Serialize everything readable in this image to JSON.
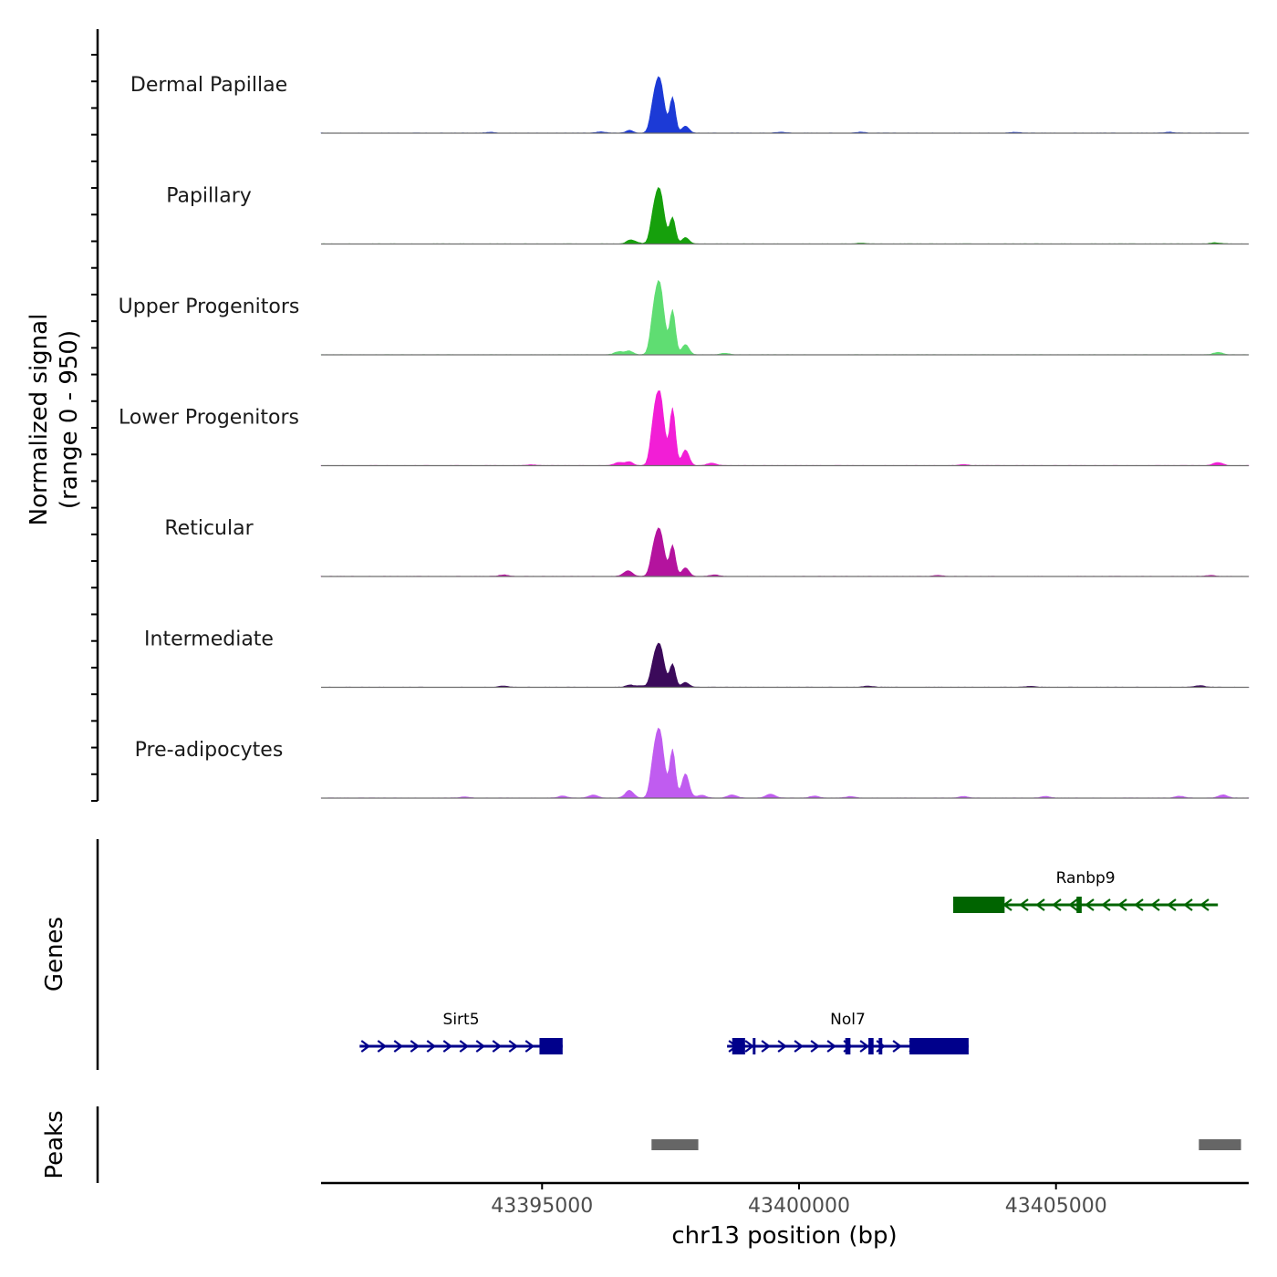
{
  "chart_data": {
    "type": "area",
    "title": "",
    "chromosome": "chr13",
    "xlabel": "chr13 position (bp)",
    "ylabel": "Normalized signal",
    "ylabel_range": "(range 0 - 950)",
    "xlim": [
      43390700,
      43408750
    ],
    "ylim": [
      0,
      950
    ],
    "x_ticks": [
      43395000,
      43400000,
      43405000
    ],
    "x_tick_labels": [
      "43395000",
      "43400000",
      "43405000"
    ],
    "peak_summits": [
      43397280,
      43397540,
      43397790
    ],
    "series": [
      {
        "name": "Dermal Papillae",
        "color": "#1c3ad6",
        "peaks": [
          700,
          450,
          90
        ],
        "background": [
          [
            43394000,
            10
          ],
          [
            43396150,
            15
          ],
          [
            43399650,
            12
          ],
          [
            43401200,
            12
          ],
          [
            43404200,
            10
          ],
          [
            43407200,
            12
          ]
        ]
      },
      {
        "name": "Papillary",
        "color": "#16a00c",
        "peaks": [
          700,
          330,
          80
        ],
        "background": [
          [
            43396800,
            25
          ],
          [
            43401200,
            10
          ],
          [
            43408100,
            15
          ]
        ]
      },
      {
        "name": "Upper Progenitors",
        "color": "#5fdd72",
        "peaks": [
          920,
          560,
          130
        ],
        "background": [
          [
            43396500,
            40
          ],
          [
            43398550,
            18
          ],
          [
            43408150,
            30
          ]
        ]
      },
      {
        "name": "Lower Progenitors",
        "color": "#f21ed6",
        "peaks": [
          950,
          720,
          200
        ],
        "background": [
          [
            43394800,
            10
          ],
          [
            43396500,
            40
          ],
          [
            43398300,
            30
          ],
          [
            43403200,
            12
          ],
          [
            43408150,
            40
          ]
        ]
      },
      {
        "name": "Reticular",
        "color": "#b4139e",
        "peaks": [
          600,
          390,
          110
        ],
        "background": [
          [
            43394250,
            20
          ],
          [
            43396650,
            45
          ],
          [
            43398350,
            20
          ],
          [
            43402700,
            12
          ],
          [
            43408000,
            12
          ]
        ]
      },
      {
        "name": "Intermediate",
        "color": "#3b0a5a",
        "peaks": [
          550,
          290,
          60
        ],
        "background": [
          [
            43394250,
            15
          ],
          [
            43396900,
            20
          ],
          [
            43401350,
            15
          ],
          [
            43404500,
            12
          ],
          [
            43407800,
            20
          ]
        ]
      },
      {
        "name": "Pre-adipocytes",
        "color": "#c05cf0",
        "peaks": [
          870,
          610,
          310
        ],
        "background": [
          [
            43393500,
            15
          ],
          [
            43395400,
            25
          ],
          [
            43396000,
            40
          ],
          [
            43396700,
            55
          ],
          [
            43398100,
            35
          ],
          [
            43398700,
            40
          ],
          [
            43399450,
            50
          ],
          [
            43400300,
            25
          ],
          [
            43401000,
            20
          ],
          [
            43403200,
            20
          ],
          [
            43404800,
            20
          ],
          [
            43407400,
            25
          ],
          [
            43408250,
            40
          ]
        ]
      }
    ],
    "genes_track_label": "Genes",
    "genes": [
      {
        "name": "Ranbp9",
        "strand": "-",
        "color": "#006400",
        "start": 43403000,
        "end": 43408150,
        "exons": [
          [
            43403000,
            43404000
          ],
          [
            43405400,
            43405500
          ]
        ]
      },
      {
        "name": "Sirt5",
        "strand": "+",
        "color": "#00008b",
        "start": 43391450,
        "end": 43395400,
        "exons": [
          [
            43394950,
            43395400
          ]
        ]
      },
      {
        "name": "Nol7",
        "strand": "+",
        "color": "#00008b",
        "start": 43398600,
        "end": 43403300,
        "exons": [
          [
            43398700,
            43398950
          ],
          [
            43399100,
            43399130
          ],
          [
            43400900,
            43401000
          ],
          [
            43401350,
            43401450
          ],
          [
            43401550,
            43401620
          ],
          [
            43402150,
            43403300
          ]
        ]
      }
    ],
    "peaks_track_label": "Peaks",
    "called_peaks": [
      [
        43397130,
        43398040
      ],
      [
        43407780,
        43408600
      ]
    ]
  }
}
